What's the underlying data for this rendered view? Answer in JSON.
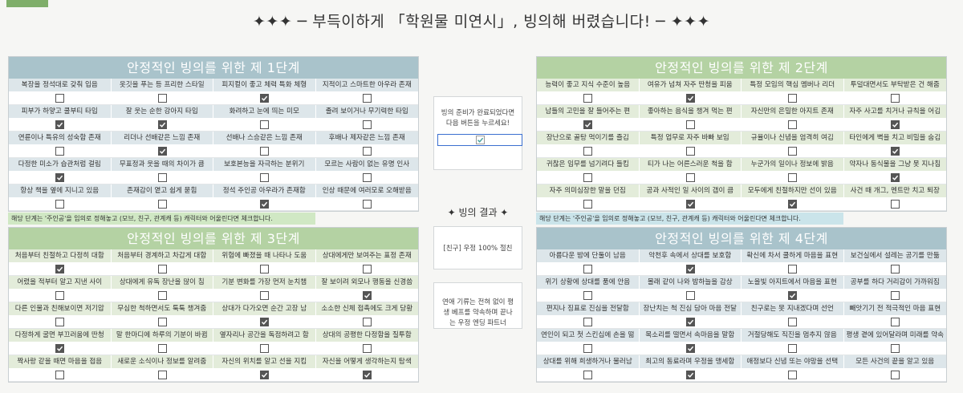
{
  "title": "✦✦✦ ─ 부득이하게 「학원물 미연시」, 빙의해 버렸습니다! ─ ✦✦✦",
  "panels": [
    {
      "title": "안정적인 빙의를 위한 제 1단계",
      "color": "#a9c3cb",
      "row_color": "#dde6ea",
      "rows": [
        [
          {
            "label": "복장을 정석대로 갖춰 입음",
            "checked": false
          },
          {
            "label": "옷깃을 푸는 등 프리한 스타일",
            "checked": false
          },
          {
            "label": "피지컬이 좋고 체력 특화 체형",
            "checked": true
          },
          {
            "label": "지적이고 스마트한 아우라 존재",
            "checked": false
          }
        ],
        [
          {
            "label": "피부가 하얗고 쿨부티 타입",
            "checked": true
          },
          {
            "label": "잘 웃는 순한 강아지 타입",
            "checked": true
          },
          {
            "label": "화려하고 눈에 띄는 미모",
            "checked": false
          },
          {
            "label": "졸려 보이거나 무기력한 타입",
            "checked": false
          }
        ],
        [
          {
            "label": "연륜이나 특유의 성숙함 존재",
            "checked": false
          },
          {
            "label": "리더나 선배같은 느낌 존재",
            "checked": true
          },
          {
            "label": "선배나 스승같은 느낌 존재",
            "checked": false
          },
          {
            "label": "후배나 제자같은 느낌 존재",
            "checked": false
          }
        ],
        [
          {
            "label": "다정한 미소가 습관처럼 걸림",
            "checked": true
          },
          {
            "label": "무표정과 웃을 때의 차이가 큼",
            "checked": false
          },
          {
            "label": "보호본능을 자극하는 분위기",
            "checked": false
          },
          {
            "label": "모르는 사람이 없는 유명 인사",
            "checked": false
          }
        ],
        [
          {
            "label": "항상 책을 옆에 지니고 있음",
            "checked": false
          },
          {
            "label": "존재감이 옅고 쉽게 묻힘",
            "checked": false
          },
          {
            "label": "정석 주인공 아우라가 존재함",
            "checked": true
          },
          {
            "label": "인상 때문에 여러모로 오해받음",
            "checked": false
          }
        ]
      ]
    },
    {
      "title": "안정적인 빙의를 위한 제 2단계",
      "color": "#b4d2a3",
      "row_color": "#e3ecda",
      "rows": [
        [
          {
            "label": "능력이 좋고 지식 수준이 높음",
            "checked": false
          },
          {
            "label": "여유가 넘쳐 자주 딴청을 피움",
            "checked": true
          },
          {
            "label": "특정 모임의 핵심 멤버나 리더",
            "checked": false
          },
          {
            "label": "투덜대면서도 부탁받은 건 해줌",
            "checked": false
          }
        ],
        [
          {
            "label": "남들의 고민을 잘 들어주는 편",
            "checked": true
          },
          {
            "label": "좋아하는 음식을 챙겨 먹는 편",
            "checked": false
          },
          {
            "label": "자신만의 은밀한 아지트 존재",
            "checked": false
          },
          {
            "label": "자주 사고를 치거나 규칙을 어김",
            "checked": true
          }
        ],
        [
          {
            "label": "장난으로 골탕 먹이기를 즐김",
            "checked": false
          },
          {
            "label": "특정 업무로 자주 바빠 보임",
            "checked": false
          },
          {
            "label": "규율이나 신념을 엄격히 여김",
            "checked": false
          },
          {
            "label": "타인에게 벽을 치고 비밀을 숨김",
            "checked": true
          }
        ],
        [
          {
            "label": "귀찮은 임무를 넘기려다 들킴",
            "checked": false
          },
          {
            "label": "티가 나는 어른스러운 척을 함",
            "checked": false
          },
          {
            "label": "누군가의 일이나 정보에 밝음",
            "checked": false
          },
          {
            "label": "약자나 동식물을 그냥 못 지나침",
            "checked": true
          }
        ],
        [
          {
            "label": "자주 의미심장한 말을 던짐",
            "checked": false
          },
          {
            "label": "공과 사적인 일 사이의 갭이 큼",
            "checked": true
          },
          {
            "label": "모두에게 친절하지만 선이 있음",
            "checked": true
          },
          {
            "label": "사건 때 개그, 멘트만 치고 퇴장",
            "checked": false
          }
        ]
      ]
    },
    {
      "title": "안정적인 빙의를 위한 제 3단계",
      "color": "#b4d2a3",
      "row_color": "#e3ecda",
      "rows": [
        [
          {
            "label": "처음부터 친절하고 다정히 대함",
            "checked": true
          },
          {
            "label": "처음부터 경계하고 차갑게 대함",
            "checked": false
          },
          {
            "label": "위험에 빠졌을 때 나타나 도움",
            "checked": false
          },
          {
            "label": "상대에게만 보여주는 표정 존재",
            "checked": false
          }
        ],
        [
          {
            "label": "어렸을 적부터 알고 지낸 사이",
            "checked": false
          },
          {
            "label": "상대에게 유독 장난을 많이 침",
            "checked": false
          },
          {
            "label": "기분 변화를 가장 먼저 눈치챔",
            "checked": false
          },
          {
            "label": "잘 보이려 외모나 행동을 신경씀",
            "checked": true
          }
        ],
        [
          {
            "label": "다른 인물과 친해보이면 저기압",
            "checked": false
          },
          {
            "label": "무심한 척하면서도 툭툭 챙겨줌",
            "checked": false
          },
          {
            "label": "상대가 다가오면 순간 고장 남",
            "checked": true
          },
          {
            "label": "소소한 신체 접촉에도 크게 당황",
            "checked": false
          }
        ],
        [
          {
            "label": "다정하게 굴면 부끄러움에 딴청",
            "checked": true
          },
          {
            "label": "말 한마디에 하루의 기분이 바뀜",
            "checked": false
          },
          {
            "label": "옆자리나 공간을 독점하려고 함",
            "checked": false
          },
          {
            "label": "상대의 공평한 다정함을 질투함",
            "checked": false
          }
        ],
        [
          {
            "label": "짝사랑 같을 때면 마음을 접음",
            "checked": false
          },
          {
            "label": "새로운 소식이나 정보를 알려줌",
            "checked": false
          },
          {
            "label": "자신의 위치를 알고 선을 지킴",
            "checked": true
          },
          {
            "label": "자신을 어떻게 생각하는지 탐색",
            "checked": true
          }
        ]
      ]
    },
    {
      "title": "안정적인 빙의를 위한 제 4단계",
      "color": "#a9c3cb",
      "row_color": "#dde6ea",
      "rows": [
        [
          {
            "label": "아름다운 밤에 단둘이 남음",
            "checked": false
          },
          {
            "label": "악천후 속에서 상대를 보호함",
            "checked": true
          },
          {
            "label": "확신에 차서 쿨하게 마음을 표현",
            "checked": false
          },
          {
            "label": "보건실에서 설레는 공기를 만듦",
            "checked": false
          }
        ],
        [
          {
            "label": "위기 상황에 상대를 품에 안음",
            "checked": false
          },
          {
            "label": "몰래 같이 나와 밤하늘을 감상",
            "checked": false
          },
          {
            "label": "노을빛 아지트에서 마음을 표현",
            "checked": true
          },
          {
            "label": "공부를 하다 거리감이 가까워짐",
            "checked": false
          }
        ],
        [
          {
            "label": "편지나 징표로 진심을 전달함",
            "checked": false
          },
          {
            "label": "장난치는 척 진심 담아 마음 전달",
            "checked": true
          },
          {
            "label": "친구로는 못 지내겠다며 선언",
            "checked": false
          },
          {
            "label": "빼앗기기 전 적극적인 마음 표현",
            "checked": false
          }
        ],
        [
          {
            "label": "연인이 되고 첫 스킨십에 손을 떪",
            "checked": false
          },
          {
            "label": "목소리를 떨면서 속마음을 말함",
            "checked": true
          },
          {
            "label": "거절당해도 직진을 멈추지 않음",
            "checked": false
          },
          {
            "label": "평생 곁에 있어달라며 미래를 약속",
            "checked": false
          }
        ],
        [
          {
            "label": "상대를 위해 희생하거나 물러남",
            "checked": false
          },
          {
            "label": "최고의 동료라며 우정을 맹세함",
            "checked": true
          },
          {
            "label": "애정보다 신념 또는 야망을 선택",
            "checked": false
          },
          {
            "label": "모든 사건의 끝을 알고 있음",
            "checked": false
          }
        ]
      ]
    }
  ],
  "notes": [
    {
      "text": "해당 단계는 '주인공'을 임의로 정해놓고 (모브, 친구, 관계캐 등) 캐릭터와 어울린다면 체크합니다.",
      "color": "#d0e8c4"
    },
    {
      "text": "해당 단계는 '주인공'을 임의로 정해놓고 (모브, 친구, 관계캐 등) 캐릭터와 어울린다면 체크합니다.",
      "color": "#cae4ea"
    }
  ],
  "ready": {
    "text": "빙의 준비가 완료되었다면 다음 버튼을 누르세요!",
    "checked": true
  },
  "result": {
    "title": "✦ 빙의 결과 ✦",
    "type": "[친구] 우정 100% 절친",
    "description": "연애 기류는 전혀 없이 평생 베프를 약속하며 끝나는 우정 엔딩 파트너"
  }
}
